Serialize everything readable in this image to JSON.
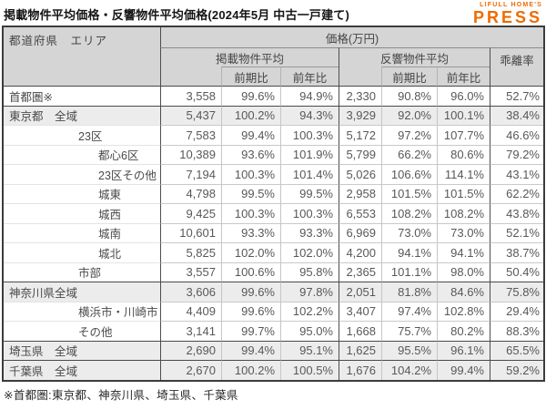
{
  "logo": {
    "brand": "LIFULL HOME'S",
    "product": "PRESS",
    "color": "#ED6C00"
  },
  "footnote": "※首都圏:東京都、神奈川県、埼玉県、千葉県",
  "chart_data": {
    "type": "table",
    "title": "掲載物件平均価格・反響物件平均価格(2024年5月 中古一戸建て)",
    "unit": "万円",
    "header": {
      "area": "都道府県　エリア",
      "price": "価格(万円)",
      "listed": "掲載物件平均",
      "inquiry": "反響物件平均",
      "divergence": "乖離率",
      "mom": "前期比",
      "yoy": "前年比"
    },
    "columns": [
      "都道府県 エリア",
      "掲載物件平均",
      "掲載 前期比",
      "掲載 前年比",
      "反響物件平均",
      "反響 前期比",
      "反響 前年比",
      "乖離率"
    ],
    "rows": [
      {
        "pref": "首都圏※",
        "area": "",
        "level": 1,
        "group": false,
        "sep": true,
        "values": [
          "3,558",
          "99.6%",
          "94.9%",
          "2,330",
          "90.8%",
          "96.0%",
          "52.7%"
        ]
      },
      {
        "pref": "東京都",
        "area": "全域",
        "level": 1,
        "group": true,
        "sep": true,
        "values": [
          "5,437",
          "100.2%",
          "94.3%",
          "3,929",
          "92.0%",
          "100.1%",
          "38.4%"
        ]
      },
      {
        "pref": "",
        "area": "23区",
        "level": 2,
        "group": false,
        "sep": false,
        "values": [
          "7,583",
          "99.4%",
          "100.3%",
          "5,172",
          "97.2%",
          "107.7%",
          "46.6%"
        ]
      },
      {
        "pref": "",
        "area": "都心6区",
        "level": 3,
        "group": false,
        "sep": false,
        "values": [
          "10,389",
          "93.6%",
          "101.9%",
          "5,799",
          "66.2%",
          "80.6%",
          "79.2%"
        ]
      },
      {
        "pref": "",
        "area": "23区その他",
        "level": 3,
        "group": false,
        "sep": false,
        "values": [
          "7,194",
          "100.3%",
          "101.4%",
          "5,026",
          "106.6%",
          "114.1%",
          "43.1%"
        ]
      },
      {
        "pref": "",
        "area": "城東",
        "level": 3,
        "group": false,
        "sep": false,
        "values": [
          "4,798",
          "99.5%",
          "99.5%",
          "2,958",
          "101.5%",
          "101.5%",
          "62.2%"
        ]
      },
      {
        "pref": "",
        "area": "城西",
        "level": 3,
        "group": false,
        "sep": false,
        "values": [
          "9,425",
          "100.3%",
          "100.3%",
          "6,553",
          "108.2%",
          "108.2%",
          "43.8%"
        ]
      },
      {
        "pref": "",
        "area": "城南",
        "level": 3,
        "group": false,
        "sep": false,
        "values": [
          "10,601",
          "93.3%",
          "93.3%",
          "6,969",
          "73.0%",
          "73.0%",
          "52.1%"
        ]
      },
      {
        "pref": "",
        "area": "城北",
        "level": 3,
        "group": false,
        "sep": false,
        "values": [
          "5,825",
          "102.0%",
          "102.0%",
          "4,200",
          "94.1%",
          "94.1%",
          "38.7%"
        ]
      },
      {
        "pref": "",
        "area": "市部",
        "level": 2,
        "group": false,
        "sep": false,
        "values": [
          "3,557",
          "100.6%",
          "95.8%",
          "2,365",
          "101.1%",
          "98.0%",
          "50.4%"
        ]
      },
      {
        "pref": "神奈川県",
        "area": "全域",
        "level": 1,
        "group": true,
        "sep": true,
        "values": [
          "3,606",
          "99.6%",
          "97.8%",
          "2,051",
          "81.8%",
          "84.6%",
          "75.8%"
        ]
      },
      {
        "pref": "",
        "area": "横浜市・川崎市",
        "level": 2,
        "group": false,
        "sep": false,
        "values": [
          "4,409",
          "99.6%",
          "102.2%",
          "3,407",
          "97.4%",
          "102.8%",
          "29.4%"
        ]
      },
      {
        "pref": "",
        "area": "その他",
        "level": 2,
        "group": false,
        "sep": false,
        "values": [
          "3,141",
          "99.7%",
          "95.0%",
          "1,668",
          "75.7%",
          "80.2%",
          "88.3%"
        ]
      },
      {
        "pref": "埼玉県",
        "area": "全域",
        "level": 1,
        "group": true,
        "sep": true,
        "values": [
          "2,690",
          "99.4%",
          "95.1%",
          "1,625",
          "95.5%",
          "96.1%",
          "65.5%"
        ]
      },
      {
        "pref": "千葉県",
        "area": "全域",
        "level": 1,
        "group": true,
        "sep": true,
        "values": [
          "2,670",
          "100.2%",
          "100.5%",
          "1,676",
          "104.2%",
          "99.4%",
          "59.2%"
        ]
      }
    ]
  }
}
